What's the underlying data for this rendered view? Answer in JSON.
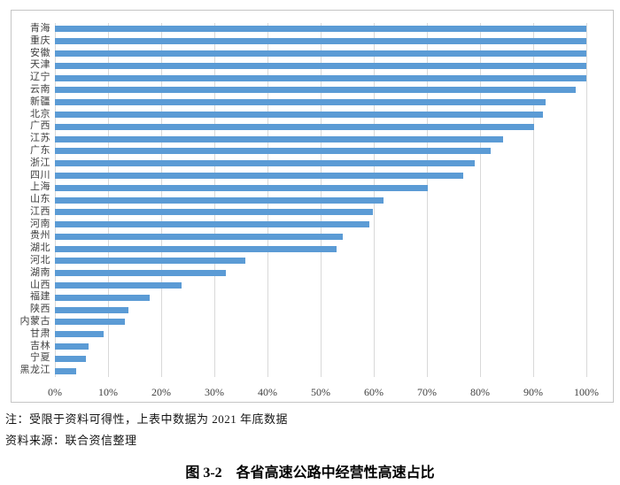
{
  "chart_data": {
    "type": "bar",
    "orientation": "horizontal",
    "title": "图 3-2　各省高速公路中经营性高速占比",
    "xlabel": "",
    "ylabel": "",
    "xlim": [
      0,
      100
    ],
    "x_ticks": [
      "0%",
      "10%",
      "20%",
      "30%",
      "40%",
      "50%",
      "60%",
      "70%",
      "80%",
      "90%",
      "100%"
    ],
    "grid": "vertical",
    "legend": "none",
    "unit": "percent",
    "categories": [
      "青海",
      "重庆",
      "安徽",
      "天津",
      "辽宁",
      "云南",
      "新疆",
      "北京",
      "广西",
      "江苏",
      "广东",
      "浙江",
      "四川",
      "上海",
      "山东",
      "江西",
      "河南",
      "贵州",
      "湖北",
      "河北",
      "湖南",
      "山西",
      "福建",
      "陕西",
      "内蒙古",
      "甘肃",
      "吉林",
      "宁夏",
      "黑龙江"
    ],
    "values": [
      100,
      100,
      100,
      100,
      100,
      98,
      92.4,
      91.9,
      90.2,
      84.4,
      82,
      79,
      76.8,
      70.2,
      61.8,
      59.8,
      59.1,
      54.2,
      53,
      35.8,
      32.1,
      23.8,
      17.8,
      13.8,
      13.2,
      9.2,
      6.3,
      5.9,
      4
    ]
  },
  "notes": {
    "line1": "注：受限于资料可得性，上表中数据为 2021 年底数据",
    "line2": "资料来源：联合资信整理"
  },
  "caption": {
    "text": "图 3-2　各省高速公路中经营性高速占比"
  },
  "colors": {
    "bar": "#5b9bd5",
    "gridline": "#d9d9d9",
    "frame_border": "#c6c6c6",
    "axis_text": "#404040",
    "note_text": "#151515",
    "caption_text": "#000000"
  }
}
